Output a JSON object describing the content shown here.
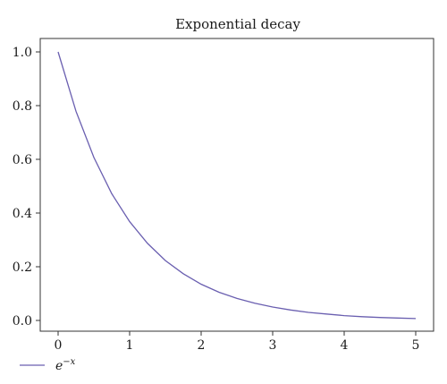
{
  "chart_data": {
    "type": "line",
    "title": "Exponential decay",
    "xlabel": "",
    "ylabel": "",
    "xlim": [
      -0.25,
      5.25
    ],
    "ylim": [
      -0.04,
      1.05
    ],
    "x_ticks": [
      0,
      1,
      2,
      3,
      4,
      5
    ],
    "x_tick_labels": [
      "0",
      "1",
      "2",
      "3",
      "4",
      "5"
    ],
    "y_ticks": [
      0.0,
      0.2,
      0.4,
      0.6,
      0.8,
      1.0
    ],
    "y_tick_labels": [
      "0.0",
      "0.2",
      "0.4",
      "0.6",
      "0.8",
      "1.0"
    ],
    "grid": false,
    "legend_position": "bottom-left",
    "series": [
      {
        "legend_base": "e",
        "legend_exponent": "−x",
        "color": "#6a5fb0",
        "x": [
          0,
          0.25,
          0.5,
          0.75,
          1.0,
          1.25,
          1.5,
          1.75,
          2.0,
          2.25,
          2.5,
          2.75,
          3.0,
          3.25,
          3.5,
          3.75,
          4.0,
          4.25,
          4.5,
          4.75,
          5.0
        ],
        "y": [
          1.0,
          0.779,
          0.607,
          0.472,
          0.368,
          0.287,
          0.223,
          0.174,
          0.135,
          0.105,
          0.082,
          0.064,
          0.05,
          0.039,
          0.03,
          0.024,
          0.018,
          0.014,
          0.011,
          0.009,
          0.007
        ]
      }
    ]
  }
}
